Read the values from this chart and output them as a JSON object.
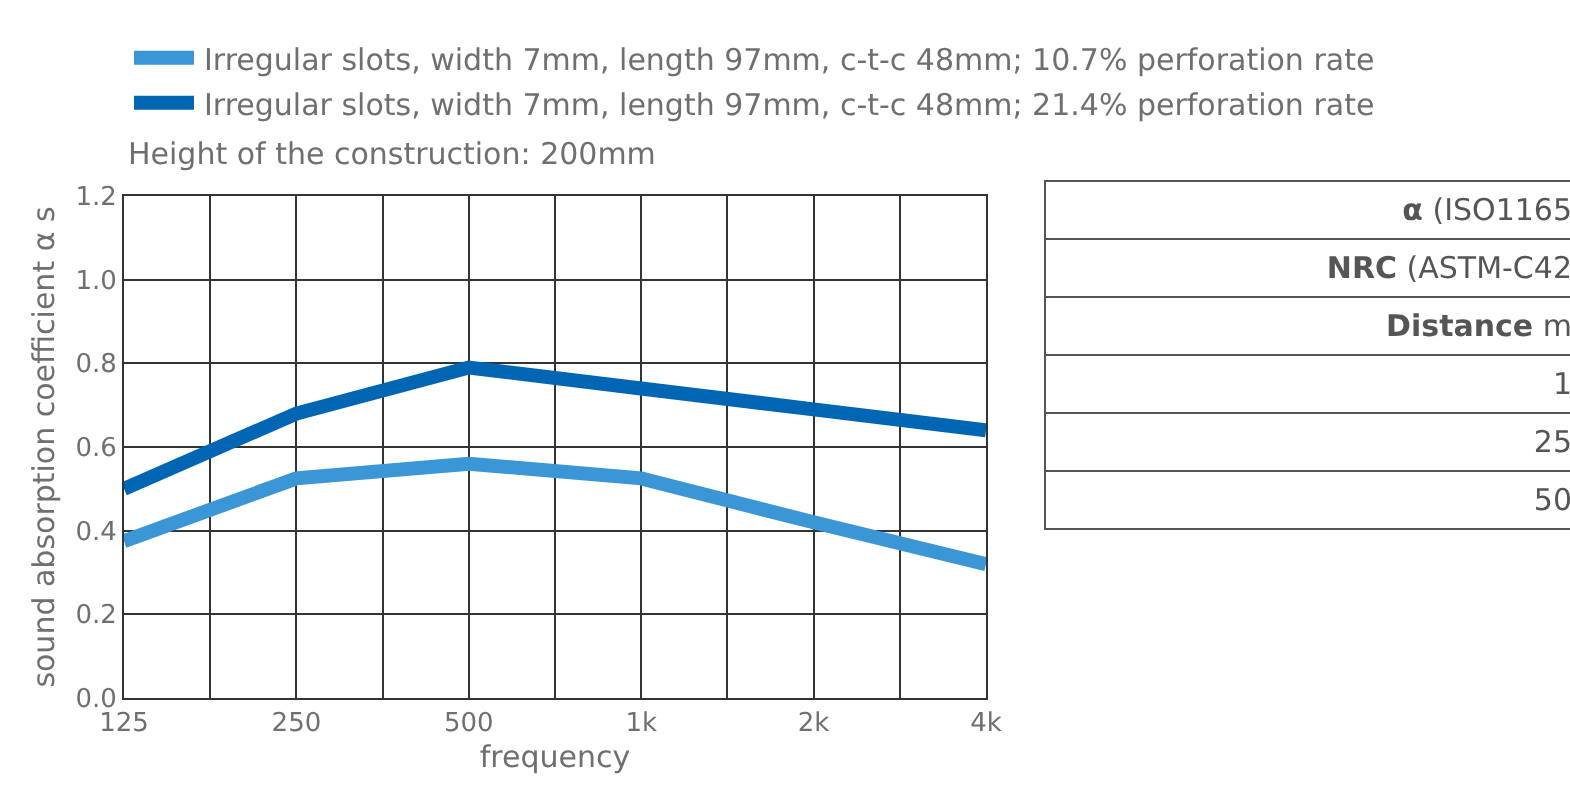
{
  "chart_data": [
    {
      "type": "line",
      "xlabel": "frequency",
      "ylabel": "sound absorption coefficient α s",
      "categories": [
        "125",
        "250",
        "500",
        "1k",
        "2k",
        "4k"
      ],
      "series": [
        {
          "name": "Irregular slots, width 7mm, length 97mm, c-t-c 48mm; 10.7% perforation rate",
          "color": "#3a96d4",
          "values": [
            0.375,
            0.525,
            0.56,
            0.525,
            0.42,
            0.32
          ]
        },
        {
          "name": "Irregular slots, width 7mm, length 97mm, c-t-c 48mm; 21.4% perforation rate",
          "color": "#0066b3",
          "values": [
            0.5,
            0.68,
            0.79,
            0.74,
            0.69,
            0.64
          ]
        }
      ],
      "ylim": [
        0,
        1.2
      ],
      "yticks": [
        {
          "value": 0,
          "label": "0.0"
        },
        0.2,
        0.4,
        0.6,
        0.8,
        {
          "value": 1,
          "label": "1.0"
        },
        1.2
      ],
      "grid": true,
      "legend": "top",
      "line_style": "solid",
      "marker": "none",
      "annotations": [
        "Height of the construction: 200mm"
      ]
    },
    {
      "type": "other",
      "annotations": [
        "α (ISO1165",
        "NRC (ASTM-C42",
        "Distance m",
        "1",
        "25",
        "50"
      ]
    }
  ]
}
